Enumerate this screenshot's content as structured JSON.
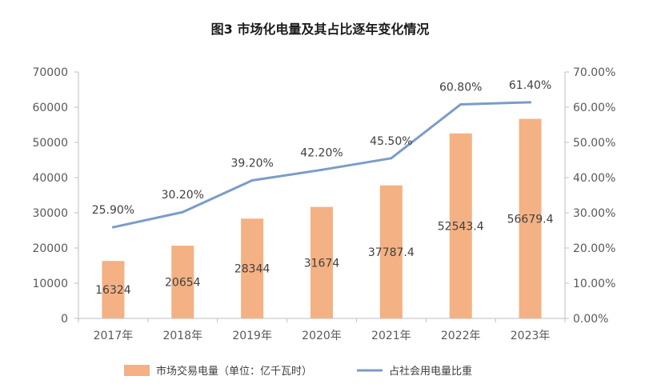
{
  "chart_data": {
    "type": "bar+line",
    "title": "图3 市场化电量及其占比逐年变化情况",
    "categories": [
      "2017年",
      "2018年",
      "2019年",
      "2020年",
      "2021年",
      "2022年",
      "2023年"
    ],
    "series": [
      {
        "name": "市场交易电量（单位：亿千瓦时）",
        "type": "bar",
        "axis": "left",
        "values": [
          16324,
          20654,
          28344,
          31674,
          37787.4,
          52543.4,
          56679.4
        ],
        "labels": [
          "16324",
          "20654",
          "28344",
          "31674",
          "37787.4",
          "52543.4",
          "56679.4"
        ],
        "color": "#f4b183"
      },
      {
        "name": "占社会用电量比重",
        "type": "line",
        "axis": "right",
        "values": [
          25.9,
          30.2,
          39.2,
          42.2,
          45.5,
          60.8,
          61.4
        ],
        "labels": [
          "25.90%",
          "30.20%",
          "39.20%",
          "42.20%",
          "45.50%",
          "60.80%",
          "61.40%"
        ],
        "color": "#7b9cc9"
      }
    ],
    "y_left": {
      "min": 0,
      "max": 70000,
      "ticks": [
        "0",
        "10000",
        "20000",
        "30000",
        "40000",
        "50000",
        "60000",
        "70000"
      ]
    },
    "y_right": {
      "min": 0,
      "max": 70,
      "ticks": [
        "0.00%",
        "10.00%",
        "20.00%",
        "30.00%",
        "40.00%",
        "50.00%",
        "60.00%",
        "70.00%"
      ]
    },
    "legend_position": "bottom",
    "grid": false
  }
}
